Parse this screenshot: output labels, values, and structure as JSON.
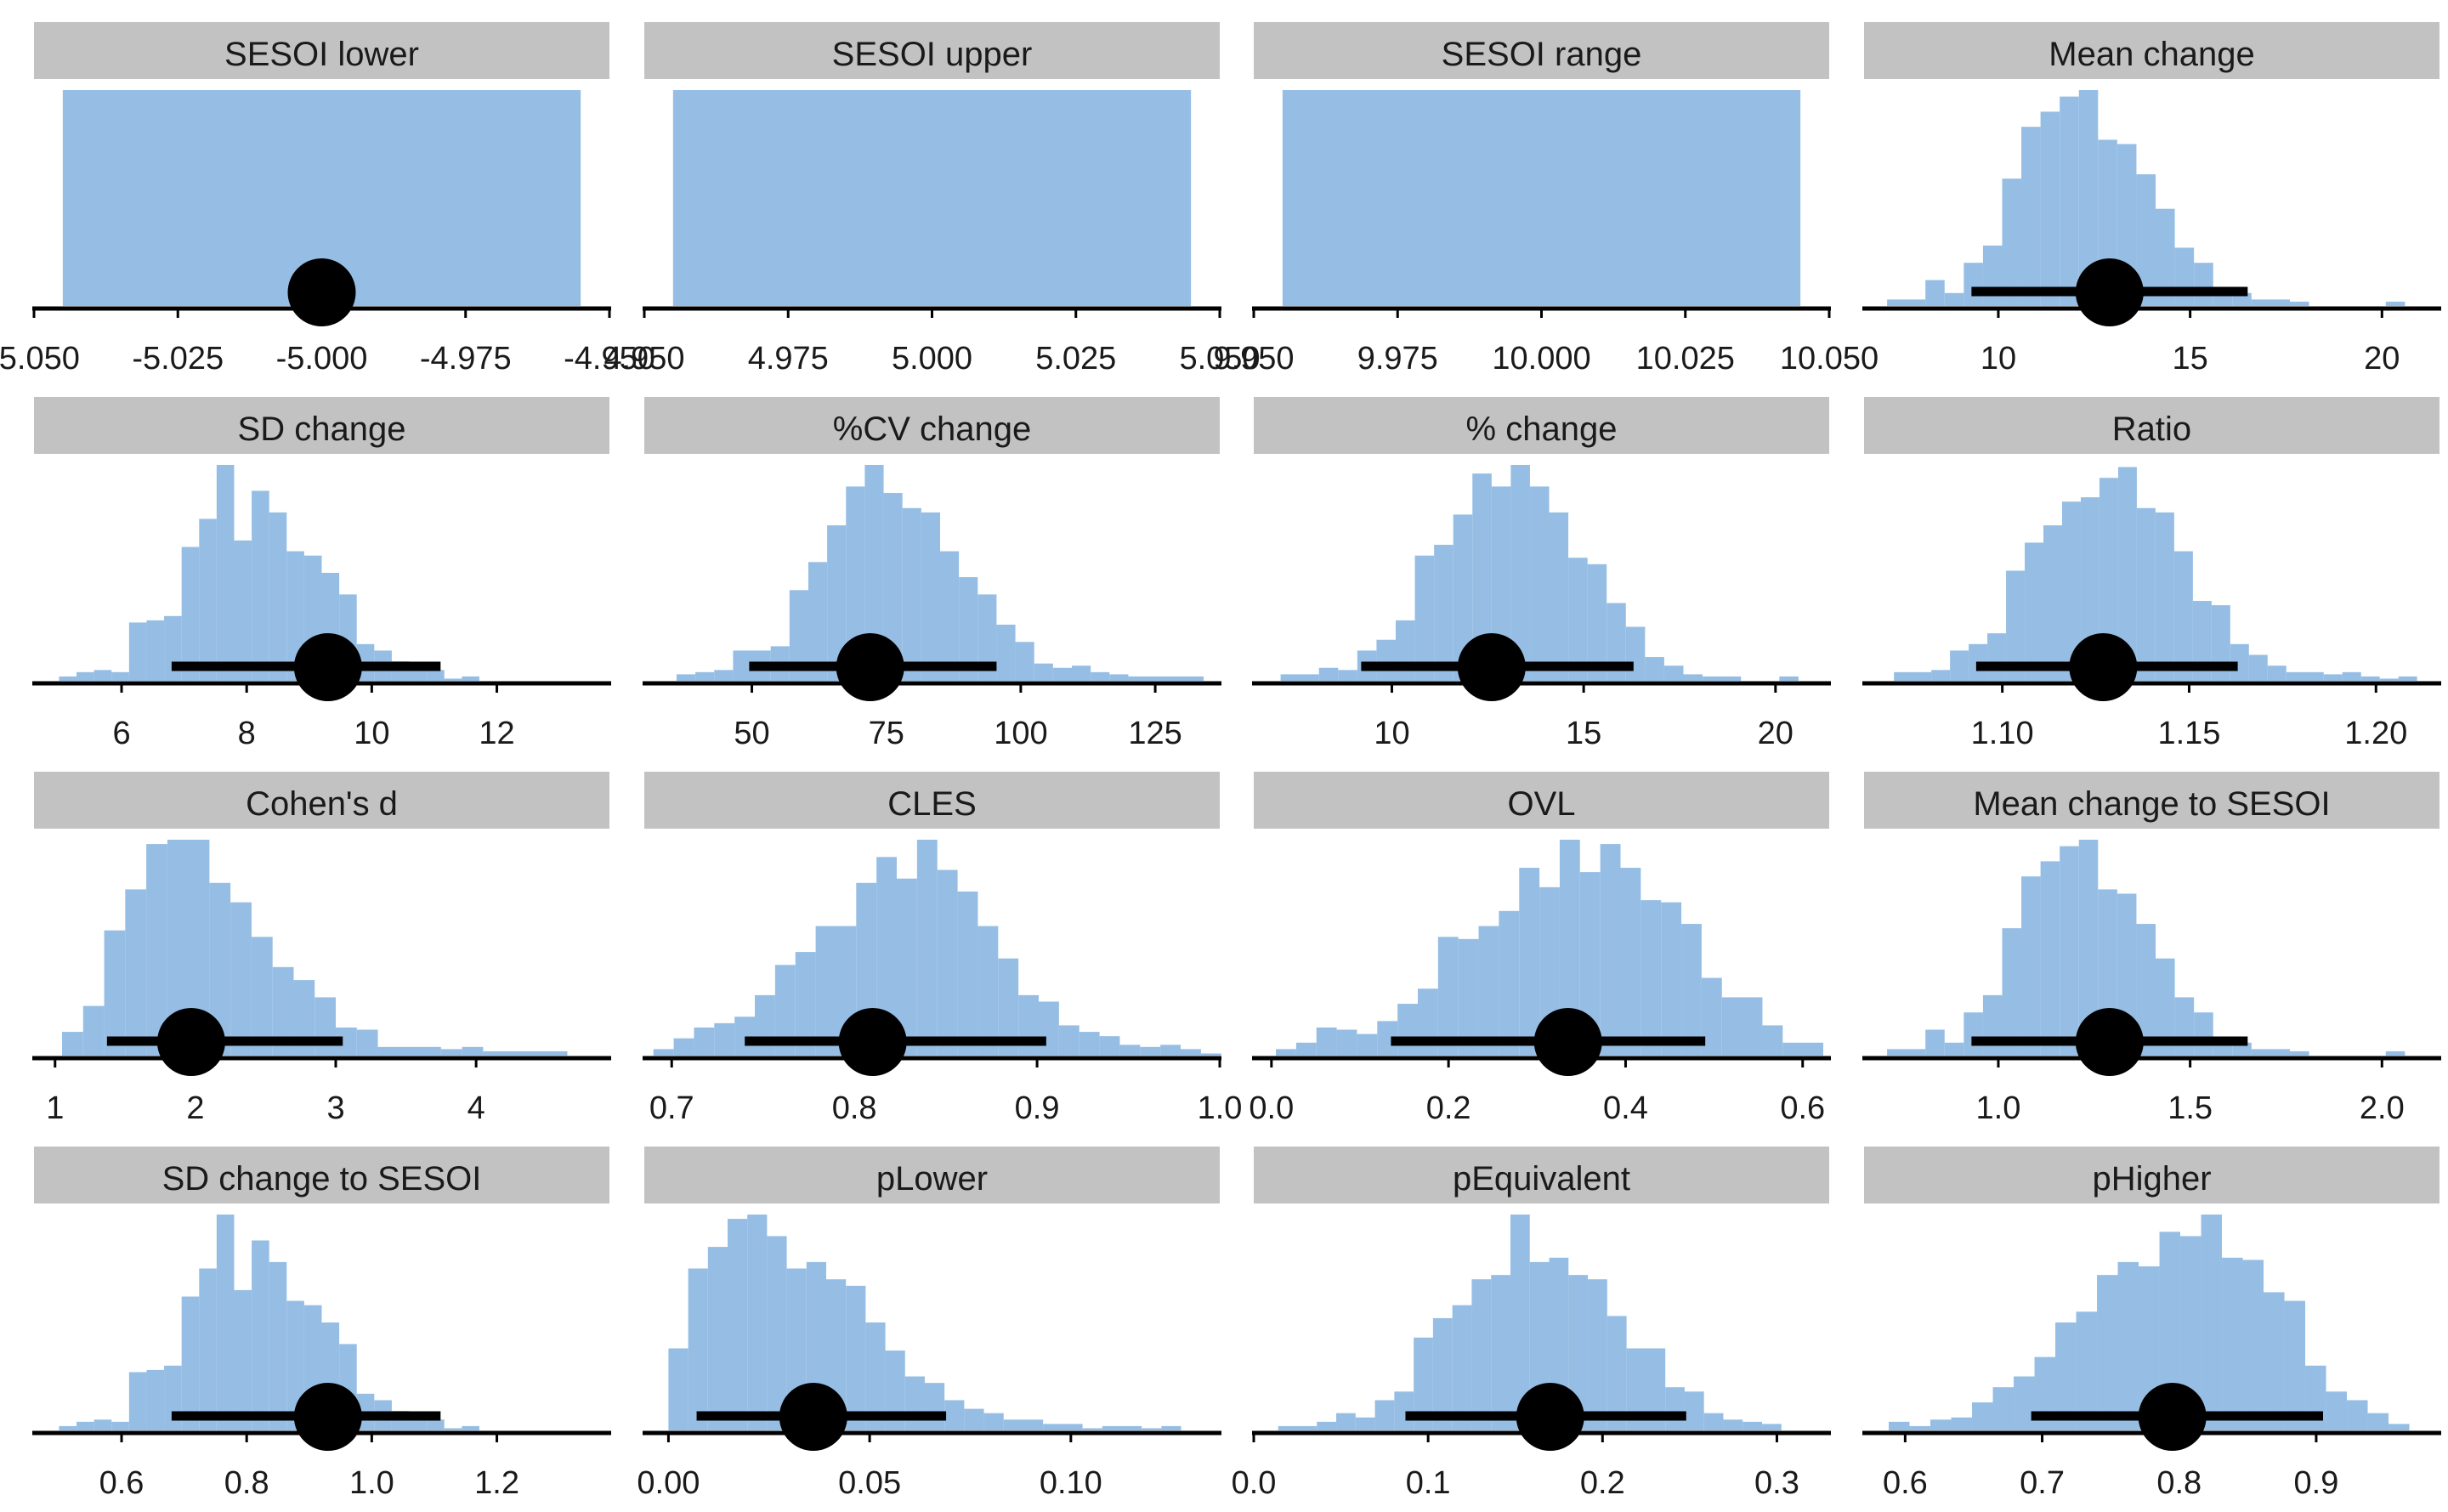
{
  "colors": {
    "strip_fill": "#c2c2c2",
    "bar_fill": "#96bee4",
    "interval": "#000000",
    "axis": "#000000"
  },
  "chart_data": [
    {
      "type": "bar",
      "title": "SESOI lower",
      "xlim": [
        -5.05,
        -4.95
      ],
      "ticks": [
        -5.05,
        -5.025,
        -5.0,
        -4.975,
        -4.95
      ],
      "tick_labels": [
        "-5.050",
        "-5.025",
        "-5.000",
        "-4.975",
        "-4.950"
      ],
      "bins": {
        "start": -5.045,
        "width": 0.09,
        "heights": [
          1
        ]
      },
      "point": -5.0,
      "interval": [
        -5.0,
        -5.0
      ]
    },
    {
      "type": "bar",
      "title": "SESOI upper",
      "xlim": [
        4.95,
        5.05
      ],
      "ticks": [
        4.95,
        4.975,
        5.0,
        5.025,
        5.05
      ],
      "tick_labels": [
        "4.950",
        "4.975",
        "5.000",
        "5.025",
        "5.050"
      ],
      "bins": {
        "start": 4.955,
        "width": 0.09,
        "heights": [
          1
        ]
      },
      "point": null,
      "interval": null
    },
    {
      "type": "bar",
      "title": "SESOI range",
      "xlim": [
        9.95,
        10.05
      ],
      "ticks": [
        9.95,
        9.975,
        10.0,
        10.025,
        10.05
      ],
      "tick_labels": [
        "9.950",
        "9.975",
        "10.000",
        "10.025",
        "10.050"
      ],
      "bins": {
        "start": 9.955,
        "width": 0.09,
        "heights": [
          1
        ]
      },
      "point": null,
      "interval": null
    },
    {
      "type": "bar",
      "title": "Mean change",
      "xlim": [
        6.5,
        21.5
      ],
      "ticks": [
        10,
        15,
        20
      ],
      "tick_labels": [
        "10",
        "15",
        "20"
      ],
      "bins": {
        "start": 7.1,
        "width": 0.5,
        "heights": [
          0.03,
          0.03,
          0.12,
          0.06,
          0.2,
          0.28,
          0.59,
          0.83,
          0.9,
          0.97,
          1.0,
          0.77,
          0.75,
          0.61,
          0.45,
          0.27,
          0.2,
          0.07,
          0.06,
          0.03,
          0.03,
          0.02,
          0,
          0,
          0,
          0,
          0.02
        ]
      },
      "point": 12.9,
      "interval": [
        9.3,
        16.5
      ]
    },
    {
      "type": "bar",
      "title": "SD change",
      "xlim": [
        4.6,
        13.8
      ],
      "ticks": [
        6,
        8,
        10,
        12
      ],
      "tick_labels": [
        "6",
        "8",
        "10",
        "12"
      ],
      "bins": {
        "start": 5.0,
        "width": 0.28,
        "heights": [
          0.02,
          0.04,
          0.05,
          0.04,
          0.27,
          0.28,
          0.3,
          0.62,
          0.75,
          1.0,
          0.65,
          0.88,
          0.78,
          0.6,
          0.58,
          0.5,
          0.4,
          0.17,
          0.14,
          0.09,
          0.06,
          0.05,
          0.01,
          0.02
        ]
      },
      "point": 9.3,
      "interval": [
        6.8,
        11.1
      ]
    },
    {
      "type": "bar",
      "title": "%CV change",
      "xlim": [
        30,
        137
      ],
      "ticks": [
        50,
        75,
        100,
        125
      ],
      "tick_labels": [
        "50",
        "75",
        "100",
        "125"
      ],
      "bins": {
        "start": 36,
        "width": 3.5,
        "heights": [
          0.03,
          0.04,
          0.05,
          0.14,
          0.14,
          0.16,
          0.42,
          0.55,
          0.72,
          0.9,
          1.0,
          0.87,
          0.8,
          0.78,
          0.6,
          0.48,
          0.4,
          0.26,
          0.18,
          0.08,
          0.06,
          0.07,
          0.04,
          0.03,
          0.02,
          0.02,
          0.02,
          0.02
        ]
      },
      "point": 72,
      "interval": [
        49.5,
        95.5
      ]
    },
    {
      "type": "bar",
      "title": "% change",
      "xlim": [
        6.4,
        21.4
      ],
      "ticks": [
        10,
        15,
        20
      ],
      "tick_labels": [
        "10",
        "15",
        "20"
      ],
      "bins": {
        "start": 7.1,
        "width": 0.5,
        "heights": [
          0.03,
          0.03,
          0.06,
          0.05,
          0.14,
          0.19,
          0.28,
          0.58,
          0.63,
          0.77,
          0.96,
          0.9,
          1.0,
          0.9,
          0.78,
          0.57,
          0.54,
          0.36,
          0.25,
          0.11,
          0.07,
          0.03,
          0.02,
          0.02,
          0,
          0,
          0.02
        ]
      },
      "point": 12.6,
      "interval": [
        9.2,
        16.3
      ]
    },
    {
      "type": "bar",
      "title": "Ratio",
      "xlim": [
        1.063,
        1.217
      ],
      "ticks": [
        1.1,
        1.15,
        1.2
      ],
      "tick_labels": [
        "1.10",
        "1.15",
        "1.20"
      ],
      "bins": {
        "start": 1.071,
        "width": 0.005,
        "heights": [
          0.04,
          0.04,
          0.05,
          0.14,
          0.17,
          0.22,
          0.51,
          0.64,
          0.72,
          0.83,
          0.85,
          0.94,
          0.99,
          0.8,
          0.78,
          0.6,
          0.37,
          0.35,
          0.17,
          0.12,
          0.07,
          0.04,
          0.04,
          0.03,
          0.04,
          0.02,
          0.01,
          0.02
        ]
      },
      "point": 1.127,
      "interval": [
        1.093,
        1.163
      ]
    },
    {
      "type": "bar",
      "title": "Cohen's d",
      "xlim": [
        0.85,
        4.95
      ],
      "ticks": [
        1,
        2,
        3,
        4
      ],
      "tick_labels": [
        "1",
        "2",
        "3",
        "4"
      ],
      "bins": {
        "start": 1.05,
        "width": 0.15,
        "heights": [
          0.11,
          0.23,
          0.58,
          0.77,
          0.98,
          1.0,
          1.0,
          0.8,
          0.71,
          0.55,
          0.41,
          0.35,
          0.27,
          0.13,
          0.12,
          0.04,
          0.04,
          0.04,
          0.03,
          0.04,
          0.02,
          0.02,
          0.02,
          0.02
        ]
      },
      "point": 1.97,
      "interval": [
        1.37,
        3.05
      ]
    },
    {
      "type": "bar",
      "title": "CLES",
      "xlim": [
        0.685,
        1.0
      ],
      "ticks": [
        0.7,
        0.8,
        0.9,
        1.0
      ],
      "tick_labels": [
        "0.7",
        "0.8",
        "0.9",
        "1.0"
      ],
      "bins": {
        "start": 0.69,
        "width": 0.0111,
        "heights": [
          0.03,
          0.08,
          0.13,
          0.15,
          0.18,
          0.28,
          0.42,
          0.48,
          0.6,
          0.6,
          0.8,
          0.92,
          0.82,
          1.0,
          0.86,
          0.76,
          0.6,
          0.45,
          0.28,
          0.25,
          0.14,
          0.11,
          0.09,
          0.05,
          0.04,
          0.05,
          0.03,
          0.01
        ]
      },
      "point": 0.81,
      "interval": [
        0.74,
        0.905
      ]
    },
    {
      "type": "bar",
      "title": "OVL",
      "xlim": [
        -0.02,
        0.63
      ],
      "ticks": [
        0.0,
        0.2,
        0.4,
        0.6
      ],
      "tick_labels": [
        "0.0",
        "0.2",
        "0.4",
        "0.6"
      ],
      "bins": {
        "start": 0.005,
        "width": 0.0229,
        "heights": [
          0.03,
          0.06,
          0.13,
          0.12,
          0.1,
          0.16,
          0.24,
          0.31,
          0.55,
          0.54,
          0.6,
          0.67,
          0.87,
          0.78,
          1.0,
          0.85,
          0.98,
          0.87,
          0.72,
          0.71,
          0.61,
          0.36,
          0.27,
          0.27,
          0.14,
          0.06,
          0.06
        ]
      },
      "point": 0.335,
      "interval": [
        0.135,
        0.49
      ]
    },
    {
      "type": "bar",
      "title": "Mean change to SESOI",
      "xlim": [
        0.65,
        2.15
      ],
      "ticks": [
        1.0,
        1.5,
        2.0
      ],
      "tick_labels": [
        "1.0",
        "1.5",
        "2.0"
      ],
      "bins": {
        "start": 0.71,
        "width": 0.05,
        "heights": [
          0.03,
          0.03,
          0.12,
          0.06,
          0.2,
          0.28,
          0.59,
          0.83,
          0.9,
          0.97,
          1.0,
          0.77,
          0.75,
          0.61,
          0.45,
          0.27,
          0.2,
          0.07,
          0.06,
          0.03,
          0.03,
          0.02,
          0,
          0,
          0,
          0,
          0.02
        ]
      },
      "point": 1.29,
      "interval": [
        0.93,
        1.65
      ]
    },
    {
      "type": "bar",
      "title": "SD change to SESOI",
      "xlim": [
        0.46,
        1.38
      ],
      "ticks": [
        0.6,
        0.8,
        1.0,
        1.2
      ],
      "tick_labels": [
        "0.6",
        "0.8",
        "1.0",
        "1.2"
      ],
      "bins": {
        "start": 0.5,
        "width": 0.028,
        "heights": [
          0.02,
          0.04,
          0.05,
          0.04,
          0.27,
          0.28,
          0.3,
          0.62,
          0.75,
          1.0,
          0.65,
          0.88,
          0.78,
          0.6,
          0.58,
          0.5,
          0.4,
          0.17,
          0.14,
          0.09,
          0.06,
          0.05,
          0.01,
          0.02
        ]
      },
      "point": 0.93,
      "interval": [
        0.68,
        1.11
      ]
    },
    {
      "type": "bar",
      "title": "pLower",
      "xlim": [
        -0.006,
        0.137
      ],
      "ticks": [
        0.0,
        0.05,
        0.1
      ],
      "tick_labels": [
        "0.00",
        "0.05",
        "0.10"
      ],
      "bins": {
        "start": 0.0,
        "width": 0.0049,
        "heights": [
          0.38,
          0.75,
          0.85,
          0.98,
          1.0,
          0.9,
          0.75,
          0.78,
          0.7,
          0.67,
          0.5,
          0.37,
          0.25,
          0.22,
          0.14,
          0.1,
          0.08,
          0.05,
          0.05,
          0.03,
          0.03,
          0.01,
          0.02,
          0.02,
          0.01,
          0.02
        ]
      },
      "point": 0.036,
      "interval": [
        0.007,
        0.069
      ]
    },
    {
      "type": "bar",
      "title": "pEquivalent",
      "xlim": [
        0.0,
        0.33
      ],
      "ticks": [
        0.0,
        0.1,
        0.2,
        0.3
      ],
      "tick_labels": [
        "0.0",
        "0.1",
        "0.2",
        "0.3"
      ],
      "bins": {
        "start": 0.014,
        "width": 0.0111,
        "heights": [
          0.02,
          0.02,
          0.04,
          0.08,
          0.06,
          0.14,
          0.18,
          0.43,
          0.52,
          0.58,
          0.7,
          0.72,
          1.0,
          0.78,
          0.8,
          0.72,
          0.7,
          0.53,
          0.38,
          0.38,
          0.2,
          0.18,
          0.08,
          0.05,
          0.04,
          0.03
        ]
      },
      "point": 0.17,
      "interval": [
        0.087,
        0.248
      ]
    },
    {
      "type": "bar",
      "title": "pHigher",
      "xlim": [
        0.57,
        0.99
      ],
      "ticks": [
        0.6,
        0.7,
        0.8,
        0.9
      ],
      "tick_labels": [
        "0.6",
        "0.7",
        "0.8",
        "0.9"
      ],
      "bins": {
        "start": 0.588,
        "width": 0.0152,
        "heights": [
          0.04,
          0.02,
          0.05,
          0.06,
          0.13,
          0.2,
          0.25,
          0.34,
          0.5,
          0.55,
          0.72,
          0.78,
          0.76,
          0.92,
          0.9,
          1.0,
          0.8,
          0.79,
          0.64,
          0.6,
          0.3,
          0.18,
          0.14,
          0.08,
          0.03
        ]
      },
      "point": 0.795,
      "interval": [
        0.692,
        0.905
      ]
    }
  ]
}
